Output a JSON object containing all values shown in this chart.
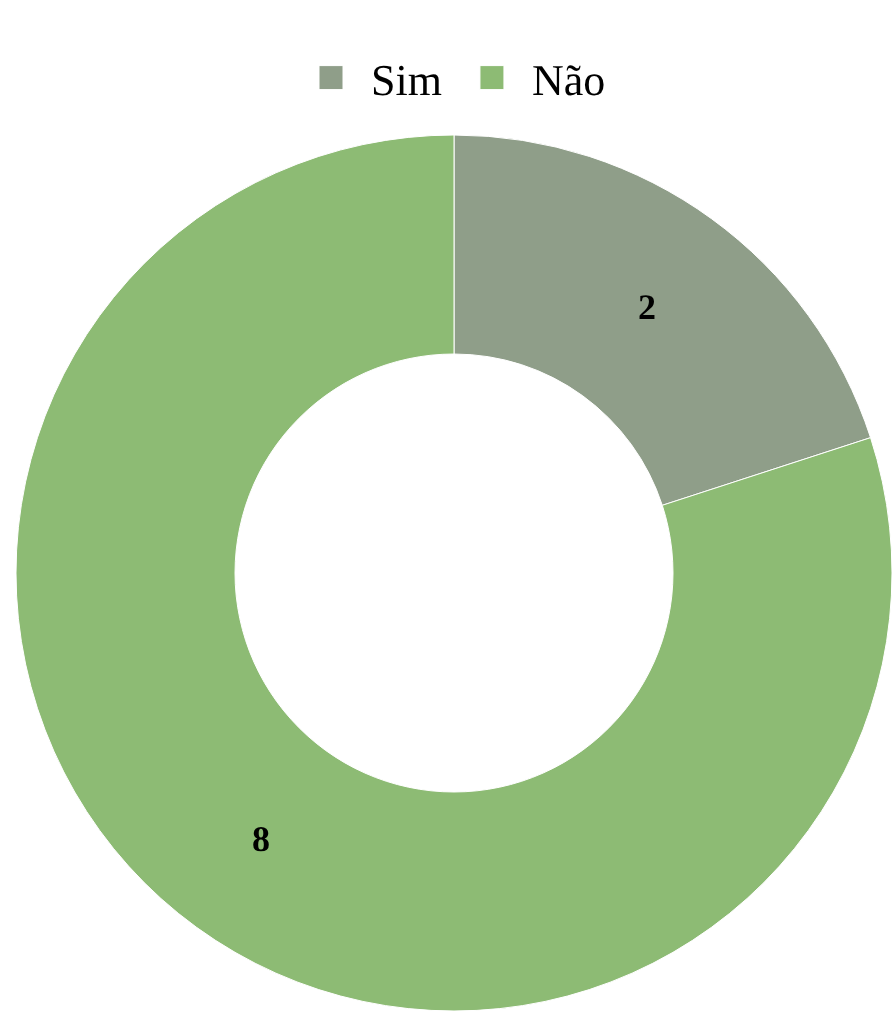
{
  "chart_data": {
    "type": "donut",
    "categories": [
      "Sim",
      "Não"
    ],
    "values": [
      2,
      8
    ],
    "colors": [
      "#8f9e89",
      "#8dbb74"
    ],
    "data_labels": true,
    "legend": "top"
  }
}
